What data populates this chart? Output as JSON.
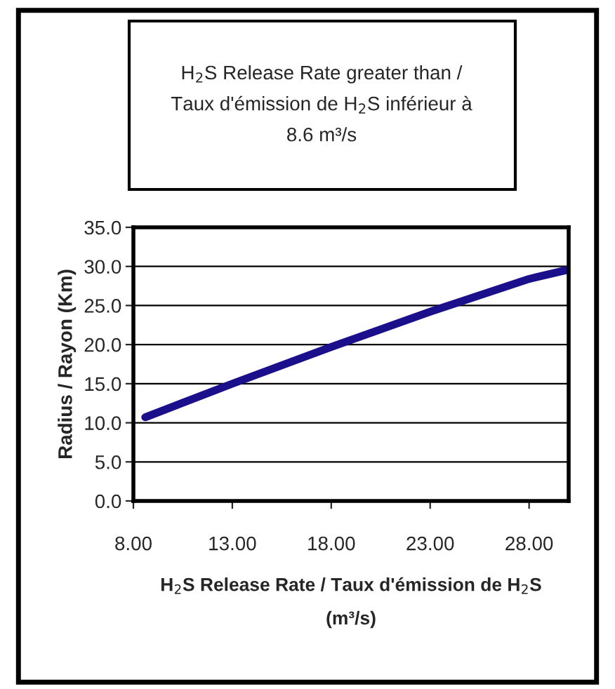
{
  "chart_data": {
    "type": "line",
    "title": "H$_{2}$S Release Rate greater than /\nTaux d'émission de H$_{2}$S inférieur à\n8.6 m³/s",
    "xlabel": "H$_{2}$S Release Rate / Taux d'émission de H$_{2}$S\n(m³/s)",
    "ylabel": "Radius / Rayon (Km)",
    "x": [
      8.6,
      13,
      18,
      23,
      28,
      30
    ],
    "series": [
      {
        "color": "#1c0f8c",
        "values": [
          10.7,
          15.0,
          19.7,
          24.2,
          28.4,
          29.6
        ]
      }
    ],
    "xlim": [
      8,
      30
    ],
    "xticks": [
      {
        "value": 8,
        "label": "8.00"
      },
      {
        "value": 13,
        "label": "13.00"
      },
      {
        "value": 18,
        "label": "18.00"
      },
      {
        "value": 23,
        "label": "23.00"
      },
      {
        "value": 28,
        "label": "28.00"
      }
    ],
    "ylim": [
      0,
      35
    ],
    "yticks": [
      {
        "value": 0,
        "label": "0.0"
      },
      {
        "value": 5,
        "label": "5.0"
      },
      {
        "value": 10,
        "label": "10.0"
      },
      {
        "value": 15,
        "label": "15.0"
      },
      {
        "value": 20,
        "label": "20.0"
      },
      {
        "value": 25,
        "label": "25.0"
      },
      {
        "value": 30,
        "label": "30.0"
      },
      {
        "value": 35,
        "label": "35.0"
      }
    ],
    "grid": "y",
    "marker": "none",
    "line_style": "solid",
    "legend": false
  }
}
